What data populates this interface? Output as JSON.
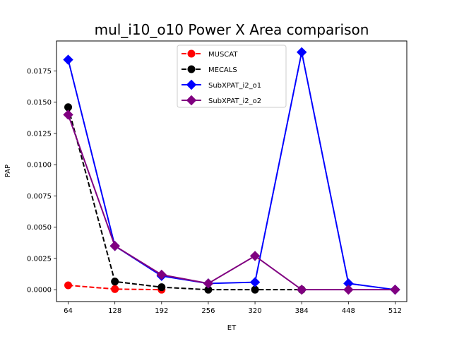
{
  "chart_data": {
    "type": "line",
    "title": "mul_i10_o10 Power X Area comparison",
    "xlabel": "ET",
    "ylabel": "PAP",
    "x": [
      64,
      128,
      192,
      256,
      320,
      384,
      448,
      512
    ],
    "xlim": [
      48,
      528
    ],
    "ylim": [
      -0.00095,
      0.0199
    ],
    "yticks": [
      0.0,
      0.0025,
      0.005,
      0.0075,
      0.01,
      0.0125,
      0.015,
      0.0175
    ],
    "ytick_labels": [
      "0.0000",
      "0.0025",
      "0.0050",
      "0.0075",
      "0.0100",
      "0.0125",
      "0.0150",
      "0.0175"
    ],
    "legend_position": "top-center",
    "grid": false,
    "series": [
      {
        "name": "MUSCAT",
        "color": "#ff0000",
        "linestyle": "dashed",
        "marker": "circle",
        "x": [
          64,
          128,
          192
        ],
        "values": [
          0.00035,
          5e-05,
          0.0
        ]
      },
      {
        "name": "MECALS",
        "color": "#000000",
        "linestyle": "dashed",
        "marker": "circle",
        "x": [
          64,
          128,
          192,
          256,
          320,
          384
        ],
        "values": [
          0.0146,
          0.00065,
          0.0002,
          0.0,
          0.0,
          0.0
        ]
      },
      {
        "name": "SubXPAT_i2_o1",
        "color": "#0000ff",
        "linestyle": "solid",
        "marker": "diamond",
        "x": [
          64,
          128,
          192,
          256,
          320,
          384,
          448,
          512
        ],
        "values": [
          0.0184,
          0.0035,
          0.0011,
          0.0005,
          0.0006,
          0.019,
          0.0005,
          0.0
        ]
      },
      {
        "name": "SubXPAT_i2_o2",
        "color": "#800080",
        "linestyle": "solid",
        "marker": "diamond",
        "x": [
          64,
          128,
          192,
          256,
          320,
          384,
          448,
          512
        ],
        "values": [
          0.014,
          0.0035,
          0.0012,
          0.0005,
          0.0027,
          0.0,
          0.0,
          0.0
        ]
      }
    ]
  }
}
